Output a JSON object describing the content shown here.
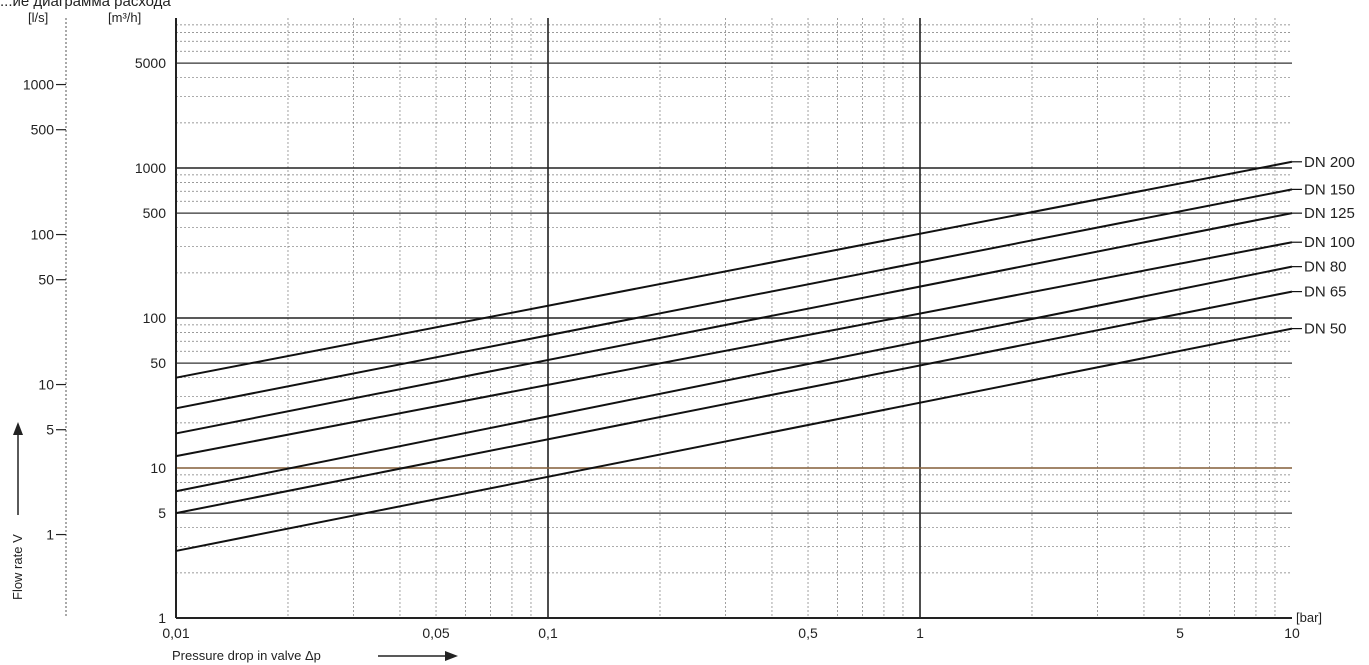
{
  "chart_data": {
    "type": "line",
    "title": "...ие диаграмма расхода",
    "xlabel": "Pressure drop in valve Δp",
    "x_unit": "[bar]",
    "ylabel": "Flow rate V",
    "y_unit_left": "[l/s]",
    "y_unit_right": "[m³/h]",
    "x_scale": "log",
    "y_scale": "log",
    "xlim": [
      0.01,
      10
    ],
    "ylim_m3h": [
      1,
      10000
    ],
    "grid": true,
    "x_ticks": [
      "0,01",
      "0,05",
      "0,1",
      "0,5",
      "1",
      "5",
      "10"
    ],
    "y_ticks_m3h": [
      "1",
      "5",
      "10",
      "50",
      "100",
      "500",
      "1000",
      "5000"
    ],
    "y_ticks_ls": [
      "1",
      "5",
      "10",
      "50",
      "100",
      "500",
      "1000"
    ],
    "series": [
      {
        "name": "DN 200",
        "x": [
          0.01,
          10
        ],
        "y": [
          40,
          1100
        ]
      },
      {
        "name": "DN 150",
        "x": [
          0.01,
          10
        ],
        "y": [
          25,
          720
        ]
      },
      {
        "name": "DN 125",
        "x": [
          0.01,
          10
        ],
        "y": [
          17,
          500
        ]
      },
      {
        "name": "DN 100",
        "x": [
          0.01,
          10
        ],
        "y": [
          12,
          320
        ]
      },
      {
        "name": "DN 80",
        "x": [
          0.01,
          10
        ],
        "y": [
          7,
          220
        ]
      },
      {
        "name": "DN 65",
        "x": [
          0.01,
          10
        ],
        "y": [
          5,
          150
        ]
      },
      {
        "name": "DN 50",
        "x": [
          0.01,
          10
        ],
        "y": [
          2.8,
          85
        ]
      }
    ]
  }
}
